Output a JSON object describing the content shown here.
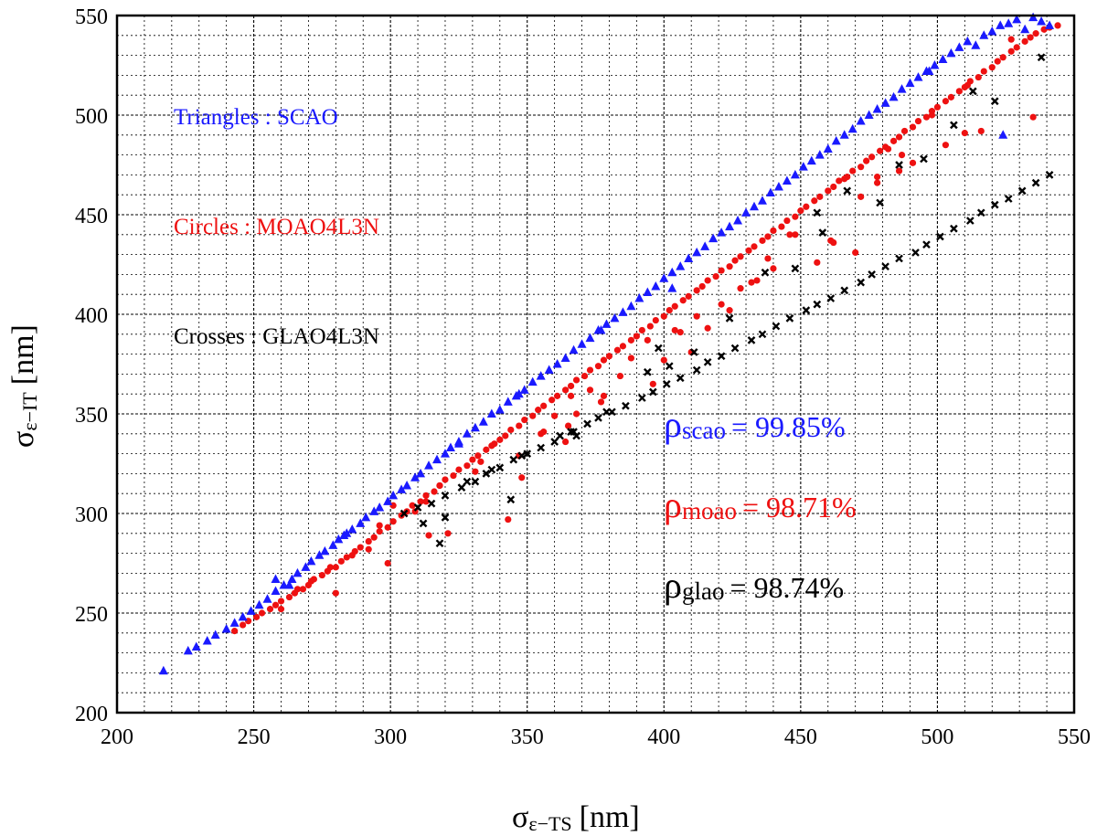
{
  "chart_data": {
    "type": "scatter",
    "title": "",
    "xlabel": {
      "symbol": "σ",
      "subscript": "ε−TS",
      "unit": "[nm]"
    },
    "ylabel": {
      "symbol": "σ",
      "subscript": "ε−IT",
      "unit": "[nm]"
    },
    "xlim": [
      200,
      550
    ],
    "ylim": [
      200,
      550
    ],
    "major_ticks": [
      200,
      250,
      300,
      350,
      400,
      450,
      500,
      550
    ],
    "minor_step": 10,
    "grid": true,
    "legend": [
      {
        "text": "Triangles : SCAO",
        "color": "#1a1aff"
      },
      {
        "text": "Circles : MOAO4L3N",
        "color": "#ee1111"
      },
      {
        "text": "Crosses : GLAO4L3N",
        "color": "#000000"
      }
    ],
    "correlations": [
      {
        "symbol": "ρ",
        "subscript": "scao",
        "value": "= 99.85%",
        "color": "#1a1aff"
      },
      {
        "symbol": "ρ",
        "subscript": "moao",
        "value": "= 98.71%",
        "color": "#ee1111"
      },
      {
        "symbol": "ρ",
        "subscript": "glao",
        "value": "= 98.74%",
        "color": "#000000"
      }
    ],
    "series": [
      {
        "name": "SCAO",
        "marker": "triangle",
        "color": "#1a1aff",
        "x": [
          217,
          226,
          229,
          233,
          236,
          240,
          243,
          246,
          249,
          252,
          255,
          258,
          261,
          264,
          266,
          269,
          271,
          274,
          276,
          279,
          281,
          284,
          286,
          289,
          291,
          294,
          296,
          299,
          301,
          304,
          306,
          309,
          311,
          314,
          317,
          320,
          322,
          325,
          328,
          331,
          334,
          337,
          340,
          343,
          346,
          349,
          352,
          355,
          358,
          361,
          364,
          367,
          370,
          373,
          376,
          379,
          382,
          385,
          388,
          391,
          394,
          397,
          400,
          403,
          406,
          409,
          412,
          415,
          418,
          421,
          424,
          427,
          430,
          433,
          436,
          439,
          442,
          445,
          448,
          451,
          454,
          457,
          460,
          463,
          466,
          469,
          472,
          475,
          478,
          481,
          484,
          487,
          490,
          493,
          496,
          499,
          502,
          505,
          508,
          511,
          514,
          517,
          520,
          523,
          526,
          529,
          532,
          535,
          538,
          541,
          258,
          263,
          283,
          325,
          347,
          377,
          403,
          497,
          524
        ],
        "y": [
          221,
          231,
          233,
          236,
          239,
          242,
          245,
          248,
          251,
          254,
          257,
          261,
          264,
          267,
          270,
          273,
          276,
          279,
          281,
          284,
          287,
          290,
          292,
          295,
          298,
          301,
          303,
          306,
          309,
          312,
          314,
          318,
          320,
          324,
          327,
          330,
          333,
          336,
          340,
          343,
          346,
          350,
          352,
          356,
          359,
          362,
          366,
          369,
          372,
          375,
          378,
          382,
          385,
          388,
          392,
          395,
          398,
          401,
          404,
          408,
          411,
          414,
          418,
          421,
          424,
          428,
          431,
          434,
          438,
          441,
          444,
          447,
          451,
          454,
          457,
          461,
          464,
          467,
          470,
          474,
          477,
          480,
          483,
          487,
          490,
          493,
          497,
          500,
          503,
          506,
          509,
          513,
          516,
          519,
          522,
          525,
          528,
          531,
          534,
          537,
          535,
          540,
          542,
          545,
          546,
          548,
          543,
          549,
          547,
          545,
          267,
          264,
          289,
          335,
          360,
          392,
          413,
          522,
          490
        ]
      },
      {
        "name": "MOAO4L3N",
        "marker": "circle",
        "color": "#ee1111",
        "x": [
          243,
          246,
          248,
          251,
          253,
          256,
          258,
          260,
          263,
          265,
          268,
          270,
          272,
          275,
          277,
          280,
          282,
          284,
          287,
          289,
          292,
          294,
          296,
          299,
          301,
          304,
          306,
          308,
          311,
          313,
          316,
          318,
          320,
          323,
          325,
          328,
          330,
          332,
          335,
          337,
          340,
          342,
          344,
          347,
          349,
          352,
          354,
          356,
          359,
          361,
          364,
          366,
          368,
          371,
          373,
          376,
          378,
          380,
          383,
          385,
          388,
          390,
          392,
          395,
          397,
          400,
          402,
          404,
          407,
          409,
          412,
          414,
          416,
          419,
          421,
          424,
          426,
          428,
          431,
          433,
          436,
          438,
          440,
          443,
          445,
          448,
          450,
          452,
          455,
          457,
          460,
          462,
          464,
          467,
          469,
          472,
          474,
          476,
          479,
          481,
          484,
          486,
          488,
          491,
          493,
          496,
          498,
          500,
          503,
          505,
          508,
          510,
          512,
          515,
          517,
          520,
          522,
          524,
          527,
          529,
          532,
          534,
          536,
          539,
          541,
          544,
          260,
          266,
          278,
          286,
          296,
          301,
          313,
          318,
          333,
          338,
          355,
          360,
          366,
          378,
          384,
          400,
          406,
          412,
          421,
          432,
          438,
          446,
          456,
          462,
          472,
          478,
          486,
          491,
          503,
          510,
          516,
          535,
          271,
          292,
          309,
          331,
          347,
          356,
          365,
          373,
          388,
          394,
          404,
          416,
          424,
          434,
          448,
          461,
          466,
          482,
          498,
          511,
          527,
          280,
          299,
          314,
          343,
          348,
          364,
          377,
          396,
          410,
          428,
          440,
          470,
          478,
          487,
          321,
          368
        ],
        "y": [
          241,
          244,
          246,
          248,
          250,
          252,
          254,
          256,
          258,
          260,
          262,
          264,
          267,
          269,
          271,
          273,
          276,
          278,
          281,
          283,
          286,
          288,
          291,
          293,
          296,
          299,
          301,
          304,
          306,
          309,
          311,
          314,
          317,
          319,
          322,
          324,
          327,
          329,
          332,
          334,
          337,
          339,
          342,
          344,
          347,
          349,
          352,
          354,
          357,
          359,
          362,
          364,
          367,
          369,
          372,
          374,
          377,
          379,
          382,
          384,
          387,
          389,
          392,
          394,
          397,
          399,
          402,
          404,
          407,
          409,
          412,
          414,
          417,
          419,
          422,
          424,
          427,
          429,
          432,
          434,
          437,
          439,
          442,
          444,
          447,
          449,
          452,
          454,
          457,
          459,
          462,
          464,
          467,
          469,
          472,
          474,
          477,
          479,
          482,
          484,
          487,
          489,
          492,
          494,
          497,
          499,
          502,
          504,
          507,
          509,
          512,
          514,
          517,
          519,
          522,
          524,
          527,
          529,
          532,
          534,
          537,
          539,
          541,
          543,
          544,
          545,
          252,
          262,
          273,
          279,
          294,
          304,
          306,
          314,
          326,
          335,
          340,
          349,
          359,
          359,
          369,
          377,
          391,
          399,
          405,
          416,
          428,
          440,
          426,
          436,
          459,
          466,
          472,
          476,
          485,
          491,
          492,
          499,
          266,
          282,
          301,
          321,
          329,
          341,
          344,
          362,
          378,
          387,
          392,
          393,
          402,
          417,
          440,
          437,
          468,
          483,
          500,
          515,
          538,
          260,
          275,
          289,
          297,
          318,
          336,
          356,
          365,
          381,
          413,
          423,
          431,
          469,
          480,
          290,
          350
        ]
      },
      {
        "name": "GLAO4L3N",
        "marker": "cross",
        "color": "#000000",
        "x": [
          305,
          310,
          315,
          320,
          326,
          331,
          335,
          340,
          345,
          350,
          355,
          360,
          366,
          372,
          376,
          381,
          386,
          392,
          396,
          401,
          406,
          412,
          416,
          421,
          426,
          432,
          436,
          441,
          446,
          452,
          456,
          461,
          466,
          472,
          476,
          481,
          486,
          492,
          496,
          501,
          506,
          512,
          516,
          521,
          526,
          531,
          536,
          541,
          312,
          320,
          328,
          337,
          348,
          362,
          367,
          379,
          394,
          402,
          411,
          424,
          437,
          448,
          458,
          467,
          479,
          486,
          495,
          506,
          513,
          521,
          538,
          318,
          344,
          368,
          398,
          456
        ],
        "y": [
          300,
          303,
          305,
          309,
          313,
          316,
          320,
          323,
          327,
          330,
          333,
          336,
          341,
          345,
          348,
          351,
          354,
          358,
          361,
          365,
          368,
          372,
          376,
          379,
          383,
          387,
          390,
          394,
          398,
          402,
          405,
          408,
          412,
          416,
          420,
          424,
          428,
          431,
          435,
          439,
          443,
          447,
          451,
          455,
          458,
          462,
          466,
          470,
          295,
          298,
          316,
          322,
          329,
          339,
          341,
          351,
          371,
          374,
          381,
          398,
          421,
          423,
          441,
          462,
          456,
          475,
          478,
          495,
          512,
          507,
          529,
          285,
          307,
          339,
          383,
          451
        ]
      }
    ]
  }
}
